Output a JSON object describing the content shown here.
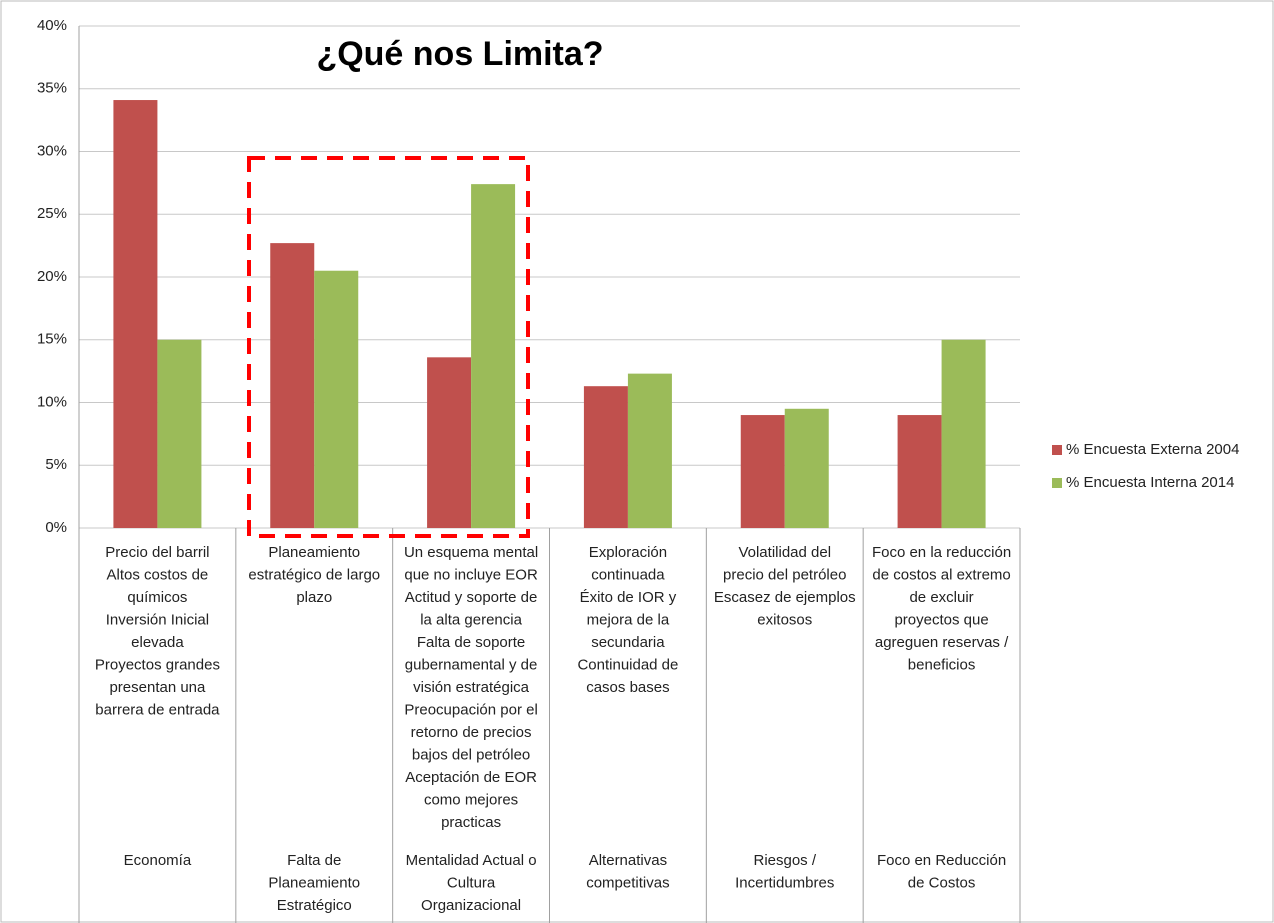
{
  "chart_data": {
    "type": "bar",
    "title": "¿Qué nos Limita?",
    "categories": [
      [
        "Precio del barril",
        "Altos costos de",
        "químicos",
        "Inversión Inicial",
        "elevada",
        "Proyectos grandes",
        "presentan una",
        "barrera de entrada"
      ],
      [
        "Planeamiento",
        "estratégico de largo",
        "plazo"
      ],
      [
        "Un esquema mental",
        "que no incluye EOR",
        "Actitud y soporte de",
        "la alta gerencia",
        "Falta de soporte",
        "gubernamental y de",
        "visión estratégica",
        "Preocupación por el",
        "retorno de precios",
        "bajos del petróleo",
        "Aceptación de EOR",
        "como mejores",
        "practicas"
      ],
      [
        "Exploración",
        "continuada",
        "Éxito de IOR y",
        "mejora de la",
        "secundaria",
        "Continuidad de",
        "casos bases"
      ],
      [
        "Volatilidad del",
        "precio del petróleo",
        "Escasez de ejemplos",
        "exitosos"
      ],
      [
        "Foco en la reducción",
        "de costos al extremo",
        "de excluir",
        "proyectos que",
        "agreguen reservas /",
        "beneficios"
      ]
    ],
    "groups": [
      [
        "Economía"
      ],
      [
        "Falta de",
        "Planeamiento",
        "Estratégico"
      ],
      [
        "Mentalidad Actual o",
        "Cultura",
        "Organizacional"
      ],
      [
        "Alternativas",
        "competitivas"
      ],
      [
        "Riesgos /",
        "Incertidumbres"
      ],
      [
        "Foco en Reducción",
        "de Costos"
      ]
    ],
    "series": [
      {
        "name": "% Encuesta Externa 2004",
        "color": "#c0504d",
        "values": [
          34.1,
          22.7,
          13.6,
          11.3,
          9.0,
          9.0
        ]
      },
      {
        "name": "% Encuesta Interna 2014",
        "color": "#9bbb59",
        "values": [
          15.0,
          20.5,
          27.4,
          12.3,
          9.5,
          15.0
        ]
      }
    ],
    "ylim": [
      0,
      40
    ],
    "yticks": [
      {
        "value": 0,
        "label": "0%"
      },
      {
        "value": 5,
        "label": "5%"
      },
      {
        "value": 10,
        "label": "10%"
      },
      {
        "value": 15,
        "label": "15%"
      },
      {
        "value": 20,
        "label": "20%"
      },
      {
        "value": 25,
        "label": "25%"
      },
      {
        "value": 30,
        "label": "30%"
      },
      {
        "value": 35,
        "label": "35%"
      },
      {
        "value": 40,
        "label": "40%"
      }
    ],
    "grid": true,
    "legend": "right"
  }
}
